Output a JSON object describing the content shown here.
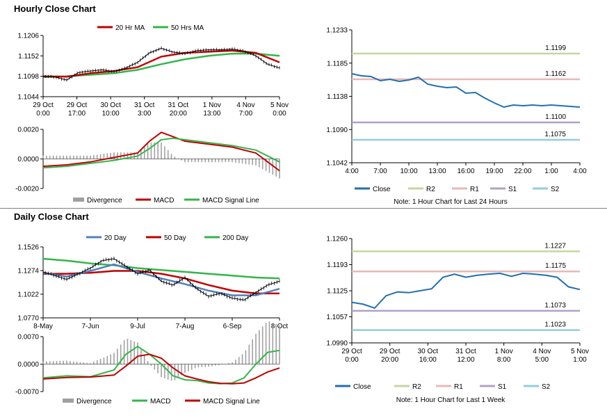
{
  "hourly_section": {
    "title": "Hourly Close Chart"
  },
  "daily_section": {
    "title": "Daily Close Chart"
  },
  "chart_data": [
    {
      "id": "hourly-price",
      "type": "line",
      "x_tick_labels": [
        [
          "29 Oct",
          "0:00"
        ],
        [
          "29 Oct",
          "17:00"
        ],
        [
          "30 Oct",
          "10:00"
        ],
        [
          "31 Oct",
          "3:00"
        ],
        [
          "31 Oct",
          "20:00"
        ],
        [
          "1 Nov",
          "13:00"
        ],
        [
          "4 Nov",
          "7:00"
        ],
        [
          "5 Nov",
          "0:00"
        ]
      ],
      "y_tick_labels": [
        "1.1206",
        "1.1152",
        "1.1098",
        "1.1044"
      ],
      "ylim": [
        1.1044,
        1.1206
      ],
      "legend": [
        "20 Hr MA",
        "50 Hrs MA"
      ],
      "legend_position": "top",
      "series": [
        {
          "name": "Close",
          "color": "#000000",
          "x": [
            0,
            5,
            10,
            15,
            20,
            25,
            30,
            35,
            40,
            45,
            50,
            55,
            60,
            65,
            70,
            75,
            80,
            85,
            90,
            95,
            100
          ],
          "values": [
            1.1098,
            1.1096,
            1.1088,
            1.1108,
            1.1112,
            1.1115,
            1.111,
            1.112,
            1.1135,
            1.116,
            1.1172,
            1.1162,
            1.1158,
            1.1166,
            1.1168,
            1.1168,
            1.117,
            1.1165,
            1.1152,
            1.113,
            1.112
          ]
        },
        {
          "name": "20 Hr MA",
          "color": "#c00000",
          "x": [
            0,
            10,
            20,
            30,
            40,
            50,
            60,
            70,
            80,
            90,
            100
          ],
          "values": [
            1.1098,
            1.1097,
            1.1106,
            1.1112,
            1.1122,
            1.115,
            1.116,
            1.1163,
            1.1166,
            1.116,
            1.1135
          ]
        },
        {
          "name": "50 Hrs MA",
          "color": "#33b54a",
          "x": [
            0,
            10,
            20,
            30,
            40,
            50,
            60,
            70,
            80,
            90,
            100
          ],
          "values": [
            1.1096,
            1.1098,
            1.1102,
            1.1106,
            1.1115,
            1.113,
            1.1143,
            1.1152,
            1.1158,
            1.1158,
            1.1152
          ]
        }
      ]
    },
    {
      "id": "hourly-macd",
      "type": "line",
      "y_tick_labels": [
        "0.0020",
        "0.0000",
        "-0.0020"
      ],
      "ylim": [
        -0.002,
        0.002
      ],
      "legend": [
        "Divergence",
        "MACD",
        "MACD Signal Line"
      ],
      "legend_position": "bottom",
      "series": [
        {
          "name": "MACD",
          "color": "#c00000",
          "x": [
            0,
            10,
            20,
            30,
            40,
            45,
            50,
            55,
            60,
            65,
            70,
            80,
            90,
            95,
            100
          ],
          "values": [
            -0.0005,
            -0.0004,
            -0.0002,
            0.0001,
            0.0004,
            0.0012,
            0.0018,
            0.0015,
            0.0012,
            0.0011,
            0.001,
            0.0008,
            0.0004,
            -0.0002,
            -0.0008
          ]
        },
        {
          "name": "MACD Signal Line",
          "color": "#33b54a",
          "x": [
            0,
            10,
            20,
            30,
            40,
            45,
            50,
            55,
            60,
            65,
            70,
            80,
            90,
            95,
            100
          ],
          "values": [
            -0.0006,
            -0.0005,
            -0.0003,
            -0.0001,
            0.0002,
            0.0007,
            0.0013,
            0.0014,
            0.0013,
            0.0012,
            0.0011,
            0.0009,
            0.0006,
            0.0002,
            -0.0002
          ]
        }
      ]
    },
    {
      "id": "hourly-24h",
      "type": "line",
      "x_tick_labels": [
        "4:00",
        "7:00",
        "10:00",
        "13:00",
        "16:00",
        "19:00",
        "22:00",
        "1:00",
        "4:00"
      ],
      "y_tick_labels": [
        "1.1233",
        "1.1185",
        "1.1138",
        "1.1090",
        "1.1042"
      ],
      "ylim": [
        1.1042,
        1.1233
      ],
      "legend": [
        "Close",
        "R2",
        "R1",
        "S1",
        "S2"
      ],
      "legend_position": "bottom",
      "note": "Note: 1 Hour Chart for Last 24 Hours",
      "levels": [
        {
          "name": "R2",
          "value": 1.1199,
          "label": "1.1199",
          "color": "#c4d79b"
        },
        {
          "name": "R1",
          "value": 1.1162,
          "label": "1.1162",
          "color": "#e6b8b7"
        },
        {
          "name": "S1",
          "value": 1.11,
          "label": "1.1100",
          "color": "#b1a0c7"
        },
        {
          "name": "S2",
          "value": 1.1075,
          "label": "1.1075",
          "color": "#92cddc"
        }
      ],
      "series": [
        {
          "name": "Close",
          "color": "#1f6fb2",
          "x": [
            0,
            1,
            2,
            3,
            4,
            5,
            6,
            7,
            8,
            9,
            10,
            11,
            12,
            13,
            14,
            15,
            16,
            17,
            18,
            19,
            20,
            21,
            22,
            23,
            24
          ],
          "values": [
            1.117,
            1.1167,
            1.1166,
            1.116,
            1.1162,
            1.1159,
            1.1161,
            1.1165,
            1.1155,
            1.1152,
            1.115,
            1.1151,
            1.1142,
            1.1143,
            1.1135,
            1.1128,
            1.1122,
            1.1125,
            1.1124,
            1.1125,
            1.1124,
            1.1125,
            1.1124,
            1.1123,
            1.1122
          ]
        }
      ]
    },
    {
      "id": "daily-price",
      "type": "line",
      "x_tick_labels": [
        "8-May",
        "7-Jun",
        "9-Jul",
        "7-Aug",
        "6-Sep",
        "8-Oct"
      ],
      "y_tick_labels": [
        "1.1526",
        "1.1274",
        "1.1022",
        "1.0770"
      ],
      "ylim": [
        1.077,
        1.1526
      ],
      "legend": [
        "20 Day",
        "50 Day",
        "200 Day"
      ],
      "legend_position": "top",
      "series": [
        {
          "name": "Close",
          "color": "#000000",
          "x": [
            0,
            5,
            10,
            15,
            20,
            25,
            30,
            35,
            40,
            45,
            50,
            55,
            60,
            65,
            70,
            75,
            80,
            85,
            90,
            95,
            100
          ],
          "values": [
            1.126,
            1.122,
            1.118,
            1.124,
            1.13,
            1.138,
            1.14,
            1.132,
            1.124,
            1.128,
            1.116,
            1.112,
            1.12,
            1.108,
            1.1,
            1.103,
            1.098,
            1.096,
            1.104,
            1.112,
            1.116
          ]
        },
        {
          "name": "20 Day",
          "color": "#4f81bd",
          "x": [
            0,
            10,
            20,
            30,
            40,
            50,
            60,
            70,
            80,
            90,
            100
          ],
          "values": [
            1.125,
            1.121,
            1.127,
            1.134,
            1.126,
            1.119,
            1.113,
            1.106,
            1.101,
            1.101,
            1.108
          ]
        },
        {
          "name": "50 Day",
          "color": "#c00000",
          "x": [
            0,
            10,
            20,
            30,
            40,
            50,
            60,
            70,
            80,
            90,
            100
          ],
          "values": [
            1.124,
            1.124,
            1.125,
            1.127,
            1.127,
            1.124,
            1.119,
            1.112,
            1.106,
            1.103,
            1.103
          ]
        },
        {
          "name": "200 Day",
          "color": "#33b54a",
          "x": [
            0,
            10,
            20,
            30,
            40,
            50,
            60,
            70,
            80,
            90,
            100
          ],
          "values": [
            1.14,
            1.138,
            1.135,
            1.133,
            1.13,
            1.128,
            1.126,
            1.124,
            1.122,
            1.12,
            1.119
          ]
        }
      ]
    },
    {
      "id": "daily-macd",
      "type": "line",
      "y_tick_labels": [
        "0.0070",
        "0.0000",
        "-0.0070"
      ],
      "ylim": [
        -0.007,
        0.007
      ],
      "legend": [
        "Divergence",
        "MACD",
        "MACD Signal Line"
      ],
      "legend_position": "bottom",
      "series": [
        {
          "name": "MACD",
          "color": "#33b54a",
          "x": [
            0,
            10,
            20,
            30,
            35,
            40,
            45,
            50,
            55,
            60,
            65,
            70,
            75,
            80,
            85,
            90,
            95,
            100
          ],
          "values": [
            -0.0035,
            -0.003,
            -0.0032,
            -0.0015,
            0.0025,
            0.0045,
            0.0025,
            0.0,
            -0.003,
            -0.004,
            -0.0042,
            -0.0048,
            -0.005,
            -0.0048,
            -0.0035,
            0.0,
            0.003,
            0.0035
          ]
        },
        {
          "name": "MACD Signal Line",
          "color": "#c00000",
          "x": [
            0,
            10,
            20,
            30,
            35,
            40,
            45,
            50,
            55,
            60,
            65,
            70,
            75,
            80,
            85,
            90,
            95,
            100
          ],
          "values": [
            -0.0038,
            -0.0034,
            -0.0033,
            -0.0028,
            -0.0005,
            0.002,
            0.0025,
            0.0015,
            -0.001,
            -0.003,
            -0.0038,
            -0.0045,
            -0.0049,
            -0.005,
            -0.0048,
            -0.0035,
            -0.002,
            -0.001
          ]
        }
      ]
    },
    {
      "id": "daily-week",
      "type": "line",
      "x_tick_labels": [
        [
          "29 Oct",
          "0:00"
        ],
        [
          "29 Oct",
          "20:00"
        ],
        [
          "30 Oct",
          "16:00"
        ],
        [
          "31 Oct",
          "12:00"
        ],
        [
          "1 Nov",
          "8:00"
        ],
        [
          "4 Nov",
          "5:00"
        ],
        [
          "5 Nov",
          "1:00"
        ]
      ],
      "y_tick_labels": [
        "1.1260",
        "1.1193",
        "1.1125",
        "1.1057",
        "1.0990"
      ],
      "ylim": [
        1.099,
        1.126
      ],
      "legend": [
        "Close",
        "R2",
        "R1",
        "S1",
        "S2"
      ],
      "legend_position": "bottom",
      "note": "Note: 1 Hour Chart for Last 1 Week",
      "levels": [
        {
          "name": "R2",
          "value": 1.1227,
          "label": "1.1227",
          "color": "#c4d79b"
        },
        {
          "name": "R1",
          "value": 1.1175,
          "label": "1.1175",
          "color": "#e6b8b7"
        },
        {
          "name": "S1",
          "value": 1.1073,
          "label": "1.1073",
          "color": "#b1a0c7"
        },
        {
          "name": "S2",
          "value": 1.1023,
          "label": "1.1023",
          "color": "#92cddc"
        }
      ],
      "series": [
        {
          "name": "Close",
          "color": "#1f6fb2",
          "x": [
            0,
            5,
            10,
            15,
            20,
            25,
            30,
            35,
            40,
            45,
            50,
            55,
            60,
            65,
            70,
            75,
            80,
            85,
            90,
            95,
            100
          ],
          "values": [
            1.1095,
            1.109,
            1.108,
            1.1112,
            1.1122,
            1.112,
            1.1125,
            1.113,
            1.116,
            1.1168,
            1.116,
            1.1165,
            1.1168,
            1.117,
            1.1162,
            1.117,
            1.1168,
            1.1165,
            1.116,
            1.1135,
            1.1128
          ]
        }
      ]
    }
  ]
}
